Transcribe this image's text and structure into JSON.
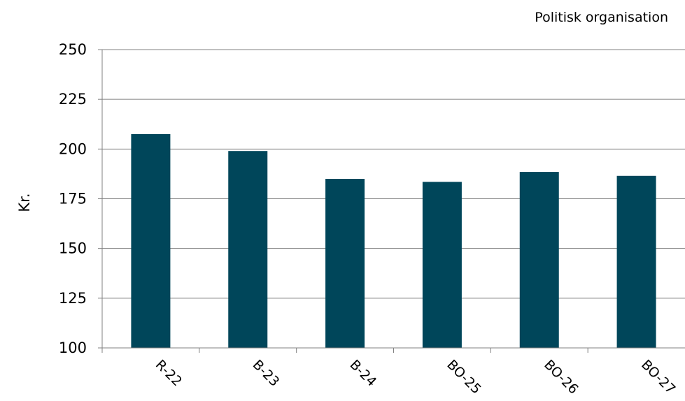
{
  "chart_data": {
    "type": "bar",
    "title": "Politisk organisation",
    "ylabel": "Kr.",
    "xlabel": "",
    "categories": [
      "R-22",
      "B-23",
      "B-24",
      "BO-25",
      "BO-26",
      "BO-27"
    ],
    "values": [
      207.5,
      199,
      185,
      183.5,
      188.5,
      186.5
    ],
    "ylim": [
      100,
      250
    ],
    "yticks": [
      100,
      125,
      150,
      175,
      200,
      225,
      250
    ],
    "grid": true,
    "legend": "none",
    "colors": {
      "bar": "#00465a",
      "grid": "#808080",
      "axis": "#808080"
    }
  }
}
